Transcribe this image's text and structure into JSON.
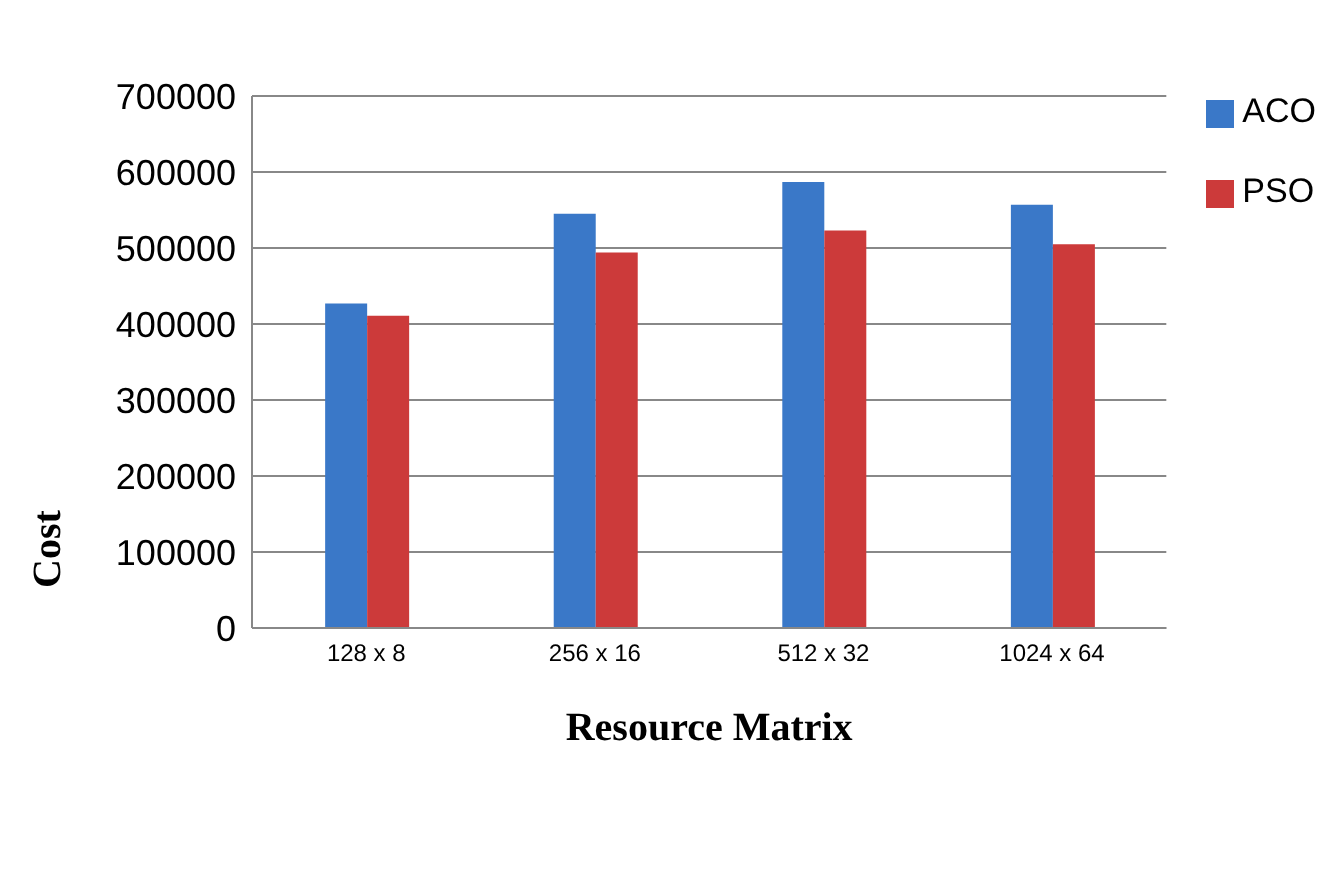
{
  "chart_data": {
    "type": "bar",
    "xlabel": "Resource Matrix",
    "ylabel": "Cost",
    "categories": [
      "128 x 8",
      "256 x 16",
      "512 x 32",
      "1024 x 64"
    ],
    "series": [
      {
        "name": "ACO",
        "color": "#3a78c8",
        "values": [
          427000,
          545000,
          587000,
          557000
        ]
      },
      {
        "name": "PSO",
        "color": "#cc3a3a",
        "values": [
          411000,
          494000,
          523000,
          505000
        ]
      }
    ],
    "ylim": [
      0,
      700000
    ],
    "yticks": [
      0,
      100000,
      200000,
      300000,
      400000,
      500000,
      600000,
      700000
    ],
    "grid": "y",
    "legend": "top right"
  }
}
